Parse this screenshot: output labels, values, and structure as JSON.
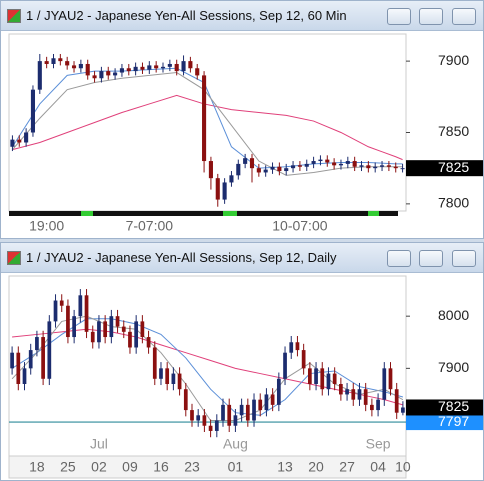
{
  "chart_data": [
    {
      "type": "candlestick",
      "title": "1 / JYAU2 - Japanese Yen-All Sessions, Sep 12, 60 Min",
      "categories": [
        null,
        null,
        null,
        null,
        null,
        "19:00",
        null,
        null,
        null,
        null,
        null,
        null,
        null,
        null,
        null,
        null,
        null,
        null,
        null,
        null,
        "7-07:00",
        null,
        null,
        null,
        null,
        null,
        null,
        null,
        null,
        null,
        null,
        null,
        null,
        null,
        null,
        null,
        null,
        null,
        null,
        null,
        null,
        null,
        "10-07:00",
        null,
        null,
        null,
        null,
        null,
        null,
        null,
        null,
        null,
        null,
        null,
        null,
        null,
        null,
        null
      ],
      "open": [
        7840,
        7845,
        7843,
        7850,
        7880,
        7900,
        7898,
        7902,
        7900,
        7897,
        7895,
        7898,
        7890,
        7888,
        7893,
        7890,
        7892,
        7895,
        7893,
        7896,
        7894,
        7897,
        7895,
        7896,
        7898,
        7893,
        7900,
        7895,
        7890,
        7830,
        7818,
        7803,
        7815,
        7820,
        7828,
        7832,
        7825,
        7822,
        7824,
        7826,
        7823,
        7825,
        7827,
        7826,
        7828,
        7830,
        7831,
        7829,
        7827,
        7828,
        7830,
        7826,
        7827,
        7825,
        7826,
        7827,
        7826,
        7825
      ],
      "high": [
        7848,
        7848,
        7853,
        7883,
        7905,
        7903,
        7905,
        7905,
        7903,
        7900,
        7901,
        7901,
        7893,
        7896,
        7896,
        7895,
        7898,
        7898,
        7899,
        7899,
        7900,
        7900,
        7899,
        7901,
        7901,
        7904,
        7903,
        7898,
        7893,
        7833,
        7821,
        7818,
        7823,
        7831,
        7835,
        7835,
        7828,
        7827,
        7829,
        7829,
        7828,
        7830,
        7830,
        7831,
        7833,
        7834,
        7834,
        7832,
        7831,
        7833,
        7833,
        7830,
        7830,
        7829,
        7830,
        7830,
        7829,
        7828
      ],
      "low": [
        7837,
        7840,
        7840,
        7847,
        7877,
        7895,
        7895,
        7897,
        7894,
        7892,
        7892,
        7887,
        7885,
        7885,
        7887,
        7887,
        7889,
        7890,
        7890,
        7891,
        7891,
        7892,
        7892,
        7893,
        7890,
        7890,
        7892,
        7887,
        7822,
        7810,
        7798,
        7800,
        7812,
        7817,
        7825,
        7815,
        7819,
        7819,
        7821,
        7820,
        7820,
        7822,
        7823,
        7823,
        7825,
        7827,
        7826,
        7824,
        7824,
        7825,
        7823,
        7823,
        7822,
        7822,
        7823,
        7823,
        7822,
        7822
      ],
      "close": [
        7845,
        7843,
        7850,
        7880,
        7900,
        7898,
        7902,
        7900,
        7897,
        7895,
        7898,
        7890,
        7888,
        7893,
        7890,
        7892,
        7895,
        7893,
        7896,
        7894,
        7897,
        7895,
        7896,
        7898,
        7893,
        7900,
        7895,
        7890,
        7830,
        7818,
        7803,
        7815,
        7820,
        7828,
        7832,
        7825,
        7822,
        7824,
        7826,
        7823,
        7825,
        7827,
        7826,
        7828,
        7830,
        7831,
        7829,
        7827,
        7828,
        7830,
        7826,
        7827,
        7825,
        7826,
        7827,
        7826,
        7825,
        7825
      ],
      "up_color": "#1c2c6e",
      "down_color": "#8b1010",
      "overlays": [
        {
          "color": "#e0407a",
          "x": [
            0,
            4,
            8,
            12,
            16,
            20,
            24,
            28,
            32,
            36,
            40,
            44,
            48,
            52,
            56,
            57
          ],
          "values": [
            7838,
            7843,
            7850,
            7857,
            7864,
            7870,
            7876,
            7870,
            7866,
            7864,
            7862,
            7858,
            7850,
            7840,
            7833,
            7831
          ]
        },
        {
          "color": "#5b8fd8",
          "x": [
            0,
            4,
            8,
            12,
            16,
            20,
            24,
            28,
            32,
            36,
            40,
            44,
            48,
            52,
            56,
            57
          ],
          "values": [
            7840,
            7870,
            7890,
            7893,
            7893,
            7894,
            7895,
            7885,
            7840,
            7825,
            7826,
            7828,
            7829,
            7829,
            7828,
            7828
          ]
        },
        {
          "color": "#9a9a9a",
          "x": [
            0,
            4,
            8,
            12,
            16,
            20,
            24,
            28,
            32,
            36,
            40,
            44,
            48,
            52,
            56,
            57
          ],
          "values": [
            7838,
            7860,
            7880,
            7885,
            7888,
            7890,
            7892,
            7880,
            7855,
            7830,
            7820,
            7822,
            7825,
            7826,
            7826,
            7826
          ]
        }
      ],
      "ylim": [
        7795,
        7919
      ],
      "yticks": [
        7800,
        7850,
        7900
      ],
      "last_price": 7825
    },
    {
      "type": "candlestick",
      "title": "1 / JYAU2 - Japanese Yen-All Sessions, Sep 12, Daily",
      "categories": [
        null,
        null,
        null,
        null,
        "18",
        null,
        null,
        null,
        null,
        "25",
        null,
        null,
        null,
        null,
        "02",
        null,
        null,
        null,
        null,
        "09",
        null,
        null,
        null,
        null,
        "16",
        null,
        null,
        null,
        null,
        "23",
        null,
        null,
        null,
        null,
        null,
        null,
        "01",
        null,
        null,
        null,
        null,
        null,
        null,
        null,
        "13",
        null,
        null,
        null,
        null,
        "20",
        null,
        null,
        null,
        null,
        "27",
        null,
        null,
        null,
        null,
        "04",
        null,
        null,
        null,
        "10"
      ],
      "months": [
        null,
        null,
        null,
        null,
        null,
        null,
        null,
        null,
        null,
        null,
        null,
        null,
        null,
        null,
        "Jul",
        null,
        null,
        null,
        null,
        null,
        null,
        null,
        null,
        null,
        null,
        null,
        null,
        null,
        null,
        null,
        null,
        null,
        null,
        null,
        null,
        null,
        "Aug",
        null,
        null,
        null,
        null,
        null,
        null,
        null,
        null,
        null,
        null,
        null,
        null,
        null,
        null,
        null,
        null,
        null,
        null,
        null,
        null,
        null,
        null,
        "Sep",
        null,
        null,
        null,
        null
      ],
      "open": [
        7900,
        7930,
        7870,
        7900,
        7935,
        7960,
        7880,
        7990,
        8030,
        8020,
        7960,
        8000,
        8040,
        7970,
        7950,
        7990,
        7960,
        8000,
        7980,
        7970,
        7940,
        7990,
        7960,
        7940,
        7880,
        7900,
        7870,
        7890,
        7860,
        7820,
        7800,
        7810,
        7790,
        7780,
        7800,
        7830,
        7790,
        7810,
        7830,
        7800,
        7840,
        7820,
        7850,
        7830,
        7880,
        7930,
        7950,
        7935,
        7900,
        7870,
        7900,
        7860,
        7890,
        7870,
        7850,
        7860,
        7840,
        7860,
        7830,
        7820,
        7840,
        7900,
        7860,
        7815
      ],
      "high": [
        7942,
        7942,
        7912,
        7947,
        7972,
        7972,
        8002,
        8042,
        8042,
        8032,
        8012,
        8052,
        8052,
        7982,
        8002,
        8002,
        8012,
        8012,
        7992,
        7982,
        8002,
        8002,
        7972,
        7952,
        7912,
        7912,
        7902,
        7902,
        7872,
        7832,
        7822,
        7822,
        7802,
        7812,
        7842,
        7842,
        7822,
        7842,
        7842,
        7852,
        7852,
        7862,
        7862,
        7892,
        7942,
        7962,
        7962,
        7947,
        7912,
        7912,
        7912,
        7902,
        7902,
        7882,
        7872,
        7872,
        7872,
        7872,
        7842,
        7852,
        7912,
        7912,
        7872,
        7837
      ],
      "low": [
        7888,
        7858,
        7858,
        7888,
        7923,
        7868,
        7868,
        7978,
        8008,
        7948,
        7948,
        7988,
        7958,
        7938,
        7938,
        7948,
        7948,
        7968,
        7958,
        7928,
        7928,
        7948,
        7928,
        7868,
        7868,
        7858,
        7858,
        7848,
        7808,
        7788,
        7788,
        7778,
        7768,
        7768,
        7788,
        7778,
        7778,
        7798,
        7788,
        7788,
        7808,
        7808,
        7818,
        7818,
        7868,
        7918,
        7923,
        7888,
        7858,
        7858,
        7848,
        7848,
        7858,
        7838,
        7838,
        7828,
        7828,
        7818,
        7808,
        7808,
        7828,
        7848,
        7803,
        7810
      ],
      "close": [
        7930,
        7870,
        7900,
        7935,
        7960,
        7880,
        7990,
        8030,
        8020,
        7960,
        8000,
        8040,
        7970,
        7950,
        7990,
        7960,
        8000,
        7980,
        7970,
        7940,
        7990,
        7960,
        7940,
        7880,
        7900,
        7870,
        7890,
        7860,
        7820,
        7800,
        7810,
        7790,
        7780,
        7800,
        7830,
        7790,
        7810,
        7830,
        7800,
        7840,
        7820,
        7850,
        7830,
        7880,
        7930,
        7950,
        7935,
        7900,
        7870,
        7900,
        7860,
        7890,
        7870,
        7850,
        7860,
        7840,
        7860,
        7830,
        7820,
        7840,
        7900,
        7860,
        7815,
        7825
      ],
      "up_color": "#1c2c6e",
      "down_color": "#8b1010",
      "overlays": [
        {
          "color": "#e0407a",
          "x": [
            0,
            4,
            8,
            12,
            16,
            20,
            24,
            28,
            32,
            36,
            40,
            44,
            48,
            52,
            56,
            60,
            63
          ],
          "values": [
            7960,
            7965,
            7970,
            7975,
            7970,
            7960,
            7945,
            7930,
            7915,
            7900,
            7890,
            7880,
            7870,
            7860,
            7850,
            7840,
            7830
          ]
        },
        {
          "color": "#5b8fd8",
          "x": [
            0,
            4,
            8,
            12,
            16,
            20,
            24,
            28,
            32,
            36,
            40,
            44,
            48,
            52,
            56,
            60,
            63
          ],
          "values": [
            7900,
            7930,
            7965,
            7995,
            7995,
            7985,
            7965,
            7920,
            7860,
            7815,
            7810,
            7840,
            7890,
            7895,
            7865,
            7855,
            7845
          ]
        },
        {
          "color": "#9a9a9a",
          "x": [
            0,
            4,
            8,
            12,
            16,
            20,
            24,
            28,
            32,
            36,
            40,
            44,
            48,
            52,
            56,
            60,
            63
          ],
          "values": [
            7880,
            7930,
            7990,
            8000,
            7980,
            7975,
            7930,
            7870,
            7800,
            7800,
            7820,
            7880,
            7910,
            7870,
            7850,
            7860,
            7840
          ]
        }
      ],
      "ylim": [
        7732,
        8077
      ],
      "yticks": [
        7900,
        8000
      ],
      "last_price": 7825,
      "reference_line": {
        "value": 7797,
        "color": "#1e90ff",
        "line_color": "#2e8b9a"
      }
    }
  ]
}
